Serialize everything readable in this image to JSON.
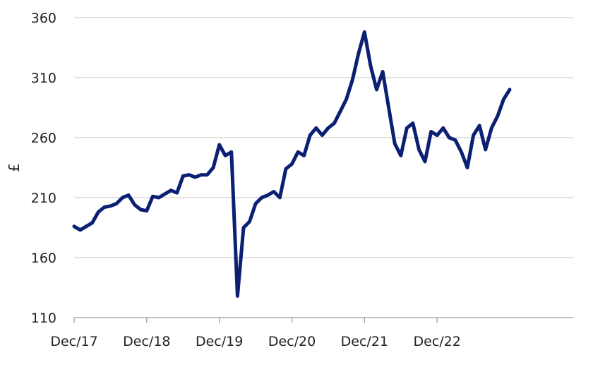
{
  "chart_data": {
    "type": "line",
    "title": "",
    "xlabel": "",
    "ylabel": "£",
    "ylim": [
      110,
      360
    ],
    "yticks": [
      110,
      160,
      210,
      260,
      310,
      360
    ],
    "xlim": [
      "2017-12",
      "2023-12"
    ],
    "xticks": [
      {
        "date": "2017-12",
        "label": "Dec/17"
      },
      {
        "date": "2018-12",
        "label": "Dec/18"
      },
      {
        "date": "2019-12",
        "label": "Dec/19"
      },
      {
        "date": "2020-12",
        "label": "Dec/20"
      },
      {
        "date": "2021-12",
        "label": "Dec/21"
      },
      {
        "date": "2022-12",
        "label": "Dec/22"
      }
    ],
    "grid": "horizontal",
    "legend": "none",
    "line_color": "#0b1f73",
    "grid_color": "#d0d0d0",
    "series": [
      {
        "name": "",
        "points": [
          [
            "2017-12",
            186
          ],
          [
            "2018-01",
            183
          ],
          [
            "2018-02",
            186
          ],
          [
            "2018-03",
            189
          ],
          [
            "2018-04",
            198
          ],
          [
            "2018-05",
            202
          ],
          [
            "2018-06",
            203
          ],
          [
            "2018-07",
            205
          ],
          [
            "2018-08",
            210
          ],
          [
            "2018-09",
            212
          ],
          [
            "2018-10",
            204
          ],
          [
            "2018-11",
            200
          ],
          [
            "2018-12",
            199
          ],
          [
            "2019-01",
            211
          ],
          [
            "2019-02",
            210
          ],
          [
            "2019-03",
            213
          ],
          [
            "2019-04",
            216
          ],
          [
            "2019-05",
            214
          ],
          [
            "2019-06",
            228
          ],
          [
            "2019-07",
            229
          ],
          [
            "2019-08",
            227
          ],
          [
            "2019-09",
            229
          ],
          [
            "2019-10",
            229
          ],
          [
            "2019-11",
            235
          ],
          [
            "2019-12",
            254
          ],
          [
            "2020-01",
            245
          ],
          [
            "2020-02",
            248
          ],
          [
            "2020-03",
            128
          ],
          [
            "2020-04",
            185
          ],
          [
            "2020-05",
            190
          ],
          [
            "2020-06",
            205
          ],
          [
            "2020-07",
            210
          ],
          [
            "2020-08",
            212
          ],
          [
            "2020-09",
            215
          ],
          [
            "2020-10",
            210
          ],
          [
            "2020-11",
            234
          ],
          [
            "2020-12",
            238
          ],
          [
            "2021-01",
            248
          ],
          [
            "2021-02",
            245
          ],
          [
            "2021-03",
            262
          ],
          [
            "2021-04",
            268
          ],
          [
            "2021-05",
            262
          ],
          [
            "2021-06",
            268
          ],
          [
            "2021-07",
            272
          ],
          [
            "2021-08",
            282
          ],
          [
            "2021-09",
            292
          ],
          [
            "2021-10",
            308
          ],
          [
            "2021-11",
            330
          ],
          [
            "2021-12",
            348
          ],
          [
            "2022-01",
            320
          ],
          [
            "2022-02",
            300
          ],
          [
            "2022-03",
            315
          ],
          [
            "2022-04",
            285
          ],
          [
            "2022-05",
            255
          ],
          [
            "2022-06",
            245
          ],
          [
            "2022-07",
            268
          ],
          [
            "2022-08",
            272
          ],
          [
            "2022-09",
            250
          ],
          [
            "2022-10",
            240
          ],
          [
            "2022-11",
            265
          ],
          [
            "2022-12",
            262
          ],
          [
            "2023-01",
            268
          ],
          [
            "2023-02",
            260
          ],
          [
            "2023-03",
            258
          ],
          [
            "2023-04",
            248
          ],
          [
            "2023-05",
            235
          ],
          [
            "2023-06",
            262
          ],
          [
            "2023-07",
            270
          ],
          [
            "2023-08",
            250
          ],
          [
            "2023-09",
            268
          ],
          [
            "2023-10",
            278
          ],
          [
            "2023-11",
            292
          ],
          [
            "2023-12",
            300
          ]
        ]
      }
    ]
  }
}
